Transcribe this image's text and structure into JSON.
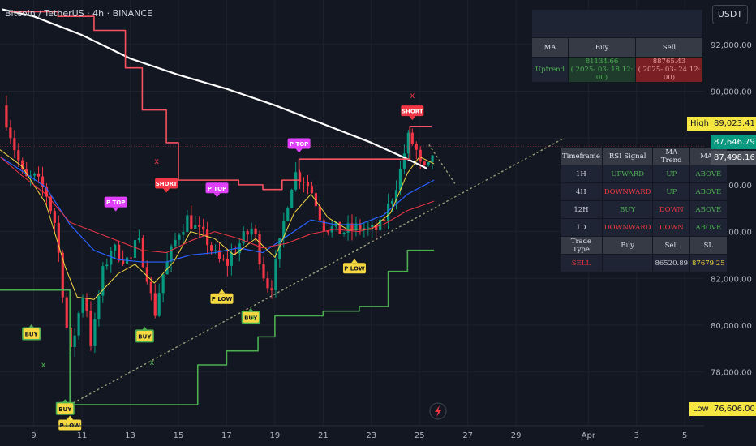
{
  "header": {
    "title": "Bitcoin / TetherUS · 4h · BINANCE",
    "currency": "USDT"
  },
  "price_tags": {
    "high_label": "High",
    "high_value": "89,023.41",
    "current": "87,646.79",
    "prev": "87,498.16",
    "low_label": "Low",
    "low_value": "76,606.00"
  },
  "ma_panel": {
    "headers": [
      "MA",
      "Buy",
      "Sell"
    ],
    "row_label": "Uptrend",
    "buy_price": "81134.66",
    "buy_time": "( 2025- 03- 18  12: 00)",
    "sell_price": "88765.43",
    "sell_time": "( 2025- 03- 24  12: 00)"
  },
  "signal_panel": {
    "headers": [
      "Timeframe",
      "RSI Signal",
      "MA Trend",
      "MA9"
    ],
    "rows": [
      {
        "tf": "1H",
        "rsi": "UPWARD",
        "trend": "UP",
        "ma9": "ABOVE"
      },
      {
        "tf": "4H",
        "rsi": "DOWNWARD",
        "trend": "UP",
        "ma9": "ABOVE"
      },
      {
        "tf": "12H",
        "rsi": "BUY",
        "trend": "DOWN",
        "ma9": "ABOVE"
      },
      {
        "tf": "1D",
        "rsi": "DOWNWARD",
        "trend": "DOWN",
        "ma9": "ABOVE"
      }
    ],
    "trade_headers": [
      "Trade Type",
      "Buy",
      "Sell",
      "SL"
    ],
    "trade": {
      "type": "SELL",
      "buy": "",
      "sell": "86520.89",
      "sl": "87679.25"
    }
  },
  "colors": {
    "background": "#131722",
    "up_candle": "#089981",
    "down_candle": "#f23645",
    "ma200": "#ffffff",
    "resistance": "#f7525f",
    "support": "#4caf50",
    "ma_blue": "#2962ff",
    "ma_yellow": "#f5d742",
    "ma_red": "#f23645",
    "label_buy": "#f5d742",
    "label_ptop": "#e040fb",
    "label_short": "#f23645"
  },
  "chart_data": {
    "type": "candlestick",
    "title": "Bitcoin / TetherUS · 4h · BINANCE",
    "x_tick_labels": [
      "9",
      "11",
      "13",
      "15",
      "17",
      "19",
      "21",
      "23",
      "25",
      "27",
      "29",
      "Apr",
      "3",
      "5"
    ],
    "x_tick_day": [
      9,
      11,
      13,
      15,
      17,
      19,
      21,
      23,
      25,
      27,
      29,
      32,
      34,
      36
    ],
    "y_ticks": [
      {
        "value": 78000,
        "label": "78,000.00"
      },
      {
        "value": 80000,
        "label": "80,000.00"
      },
      {
        "value": 82000,
        "label": "82,000.00"
      },
      {
        "value": 84000,
        "label": "84,000.00"
      },
      {
        "value": 86000,
        "label": "86,000.00"
      },
      {
        "value": 88000,
        "label": "88,000.00"
      },
      {
        "value": 90000,
        "label": "90,000.00"
      },
      {
        "value": 92000,
        "label": "92,000.00"
      }
    ],
    "ylim": [
      75700,
      93900
    ],
    "xlim_day": [
      7.6,
      36.8
    ],
    "close_path": [
      [
        7.7,
        89400
      ],
      [
        8.2,
        87600
      ],
      [
        8.6,
        86200
      ],
      [
        9.0,
        86300
      ],
      [
        9.5,
        85700
      ],
      [
        9.9,
        84300
      ],
      [
        10.2,
        81500
      ],
      [
        10.5,
        78600
      ],
      [
        10.8,
        80200
      ],
      [
        11.1,
        81600
      ],
      [
        11.4,
        79000
      ],
      [
        11.8,
        82000
      ],
      [
        12.2,
        83300
      ],
      [
        12.6,
        83000
      ],
      [
        13.0,
        82700
      ],
      [
        13.3,
        83700
      ],
      [
        13.7,
        82200
      ],
      [
        14.0,
        80400
      ],
      [
        14.3,
        82000
      ],
      [
        14.6,
        82800
      ],
      [
        15.0,
        84000
      ],
      [
        15.4,
        84600
      ],
      [
        15.8,
        84000
      ],
      [
        16.2,
        83600
      ],
      [
        16.6,
        82800
      ],
      [
        17.0,
        82600
      ],
      [
        17.3,
        83200
      ],
      [
        17.7,
        83700
      ],
      [
        18.1,
        84200
      ],
      [
        18.5,
        82300
      ],
      [
        18.8,
        81500
      ],
      [
        19.1,
        82800
      ],
      [
        19.5,
        85200
      ],
      [
        19.8,
        86500
      ],
      [
        20.2,
        86300
      ],
      [
        20.6,
        85600
      ],
      [
        21.0,
        84300
      ],
      [
        21.4,
        84100
      ],
      [
        21.8,
        84000
      ],
      [
        22.2,
        84100
      ],
      [
        22.6,
        84200
      ],
      [
        23.0,
        84000
      ],
      [
        23.4,
        84200
      ],
      [
        23.8,
        85300
      ],
      [
        24.2,
        86600
      ],
      [
        24.5,
        88000
      ],
      [
        24.8,
        87700
      ],
      [
        25.1,
        86500
      ],
      [
        25.4,
        86700
      ],
      [
        25.6,
        87646
      ]
    ],
    "series": [
      {
        "key": "ma200",
        "points": [
          [
            7.7,
            93500
          ],
          [
            9.0,
            93200
          ],
          [
            11.0,
            92400
          ],
          [
            13.0,
            91400
          ],
          [
            15.0,
            90700
          ],
          [
            17.0,
            90100
          ],
          [
            19.0,
            89400
          ],
          [
            21.0,
            88600
          ],
          [
            23.0,
            87800
          ],
          [
            24.5,
            87100
          ],
          [
            25.3,
            86700
          ]
        ]
      },
      {
        "key": "resistance",
        "points": [
          [
            8.0,
            93400
          ],
          [
            10.0,
            93200
          ],
          [
            11.5,
            92600
          ],
          [
            12.8,
            91000
          ],
          [
            13.5,
            89200
          ],
          [
            14.5,
            87800
          ],
          [
            15.0,
            86200
          ],
          [
            16.5,
            86200
          ],
          [
            17.5,
            86000
          ],
          [
            18.5,
            85800
          ],
          [
            19.3,
            86200
          ],
          [
            20.0,
            87100
          ],
          [
            22.0,
            87100
          ],
          [
            23.5,
            87100
          ],
          [
            24.5,
            87100
          ],
          [
            24.6,
            88500
          ],
          [
            25.5,
            88500
          ]
        ]
      },
      {
        "key": "support",
        "points": [
          [
            7.6,
            81500
          ],
          [
            9.5,
            81500
          ],
          [
            10.2,
            81500
          ],
          [
            10.5,
            76600
          ],
          [
            14.5,
            76600
          ],
          [
            15.6,
            76600
          ],
          [
            15.8,
            78300
          ],
          [
            17.0,
            78900
          ],
          [
            18.3,
            79500
          ],
          [
            19.0,
            80400
          ],
          [
            21.0,
            80600
          ],
          [
            22.5,
            80800
          ],
          [
            23.3,
            80800
          ],
          [
            23.7,
            82300
          ],
          [
            24.5,
            83200
          ],
          [
            25.6,
            83200
          ]
        ]
      },
      {
        "key": "ma_blue",
        "points": [
          [
            7.6,
            87200
          ],
          [
            8.5,
            86600
          ],
          [
            9.5,
            85900
          ],
          [
            10.5,
            84300
          ],
          [
            11.5,
            83200
          ],
          [
            12.5,
            82800
          ],
          [
            13.5,
            82700
          ],
          [
            14.5,
            82700
          ],
          [
            15.5,
            83000
          ],
          [
            16.5,
            83100
          ],
          [
            17.5,
            83300
          ],
          [
            18.5,
            83100
          ],
          [
            19.5,
            83800
          ],
          [
            20.5,
            84500
          ],
          [
            21.5,
            84300
          ],
          [
            22.5,
            84300
          ],
          [
            23.5,
            84700
          ],
          [
            24.5,
            85600
          ],
          [
            25.6,
            86200
          ]
        ]
      },
      {
        "key": "ma_yellow",
        "points": [
          [
            7.6,
            87500
          ],
          [
            8.5,
            86800
          ],
          [
            9.5,
            85200
          ],
          [
            10.3,
            82500
          ],
          [
            10.8,
            81200
          ],
          [
            11.5,
            81100
          ],
          [
            12.5,
            82200
          ],
          [
            13.2,
            82600
          ],
          [
            14.0,
            81800
          ],
          [
            14.8,
            82700
          ],
          [
            15.5,
            84000
          ],
          [
            16.5,
            83700
          ],
          [
            17.3,
            83000
          ],
          [
            18.2,
            83700
          ],
          [
            19.0,
            82900
          ],
          [
            19.8,
            84800
          ],
          [
            20.5,
            85600
          ],
          [
            21.2,
            84600
          ],
          [
            22.0,
            84100
          ],
          [
            23.0,
            84100
          ],
          [
            23.8,
            84800
          ],
          [
            24.5,
            86500
          ],
          [
            25.0,
            87200
          ],
          [
            25.6,
            86900
          ]
        ]
      },
      {
        "key": "ma_red",
        "points": [
          [
            7.6,
            87200
          ],
          [
            8.5,
            86400
          ],
          [
            9.5,
            85600
          ],
          [
            10.5,
            84400
          ],
          [
            11.5,
            84000
          ],
          [
            12.5,
            83600
          ],
          [
            13.5,
            83200
          ],
          [
            14.5,
            83100
          ],
          [
            15.5,
            83600
          ],
          [
            16.5,
            84000
          ],
          [
            17.5,
            83700
          ],
          [
            18.5,
            83300
          ],
          [
            19.5,
            83500
          ],
          [
            20.5,
            83900
          ],
          [
            21.5,
            84100
          ],
          [
            22.5,
            84000
          ],
          [
            23.5,
            84300
          ],
          [
            24.5,
            84900
          ],
          [
            25.6,
            85300
          ]
        ]
      }
    ],
    "trendline": [
      [
        10.5,
        76600
      ],
      [
        31.0,
        88000
      ]
    ],
    "projection": [
      [
        25.4,
        87700
      ],
      [
        26.5,
        86000
      ]
    ],
    "levels": [
      {
        "key": "current",
        "value": 87646.79
      }
    ],
    "signals": [
      {
        "text": "BUY",
        "day": 10.3,
        "price": 76800,
        "kind": "buy"
      },
      {
        "text": "BUY",
        "day": 8.9,
        "price": 80000,
        "kind": "buy"
      },
      {
        "text": "BUY",
        "day": 13.6,
        "price": 79900,
        "kind": "buy"
      },
      {
        "text": "BUY",
        "day": 18.0,
        "price": 80700,
        "kind": "buy"
      },
      {
        "text": "P LOW",
        "day": 10.5,
        "price": 76100,
        "kind": "plow"
      },
      {
        "text": "P LOW",
        "day": 16.8,
        "price": 81500,
        "kind": "plow"
      },
      {
        "text": "P LOW",
        "day": 22.3,
        "price": 82800,
        "kind": "plow"
      },
      {
        "text": "P TOP",
        "day": 12.4,
        "price": 84900,
        "kind": "ptop"
      },
      {
        "text": "P TOP",
        "day": 16.6,
        "price": 85500,
        "kind": "ptop"
      },
      {
        "text": "P TOP",
        "day": 20.0,
        "price": 87400,
        "kind": "ptop"
      },
      {
        "text": "SHORT",
        "day": 14.5,
        "price": 85700,
        "kind": "short"
      },
      {
        "text": "SHORT",
        "day": 24.7,
        "price": 88800,
        "kind": "short"
      }
    ],
    "markers": [
      {
        "text": "x",
        "day": 9.4,
        "price": 78200,
        "kind": "green"
      },
      {
        "text": "x",
        "day": 13.9,
        "price": 78300,
        "kind": "green"
      },
      {
        "text": "x",
        "day": 18.1,
        "price": 80200,
        "kind": "green"
      },
      {
        "text": "x",
        "day": 14.1,
        "price": 86900,
        "kind": "red"
      },
      {
        "text": "x",
        "day": 24.7,
        "price": 89700,
        "kind": "red"
      }
    ]
  }
}
